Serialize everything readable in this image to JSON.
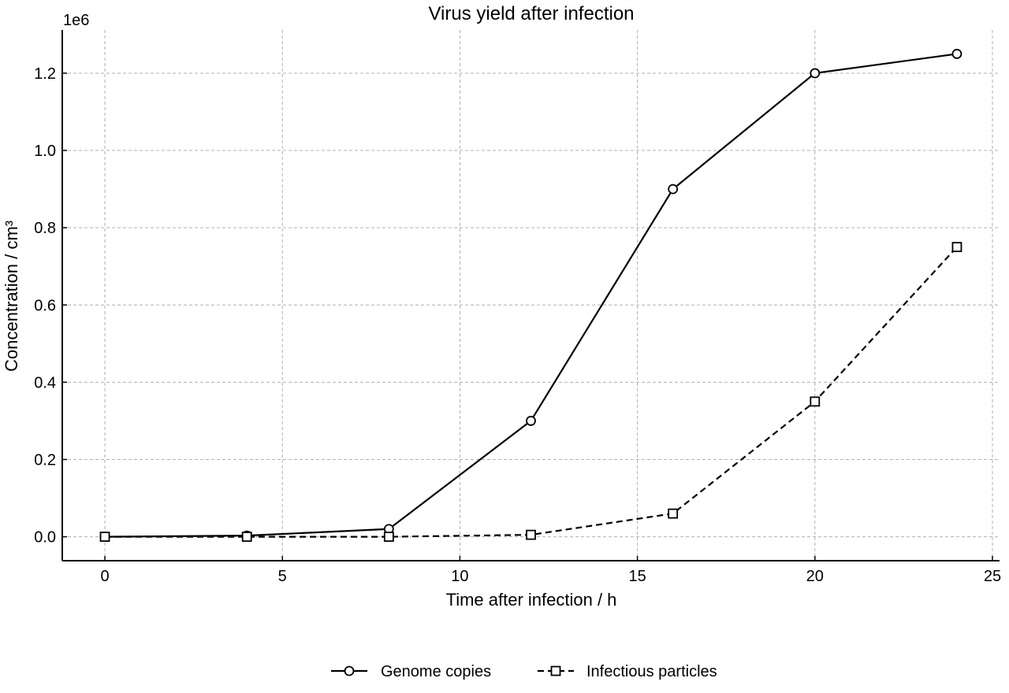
{
  "chart_data": {
    "type": "line",
    "title": "Virus yield after infection",
    "xlabel": "Time after infection / h",
    "ylabel": "Concentration / cm³",
    "y_offset_label": "1e6",
    "xlim": [
      -1.2,
      25.2
    ],
    "ylim": [
      -62000,
      1312000
    ],
    "xticks": [
      0,
      5,
      10,
      15,
      20,
      25
    ],
    "xtick_labels": [
      "0",
      "5",
      "10",
      "15",
      "20",
      "25"
    ],
    "yticks": [
      0,
      200000,
      400000,
      600000,
      800000,
      1000000,
      1200000
    ],
    "ytick_labels": [
      "0.0",
      "0.2",
      "0.4",
      "0.6",
      "0.8",
      "1.0",
      "1.2"
    ],
    "grid": true,
    "legend_position": "bottom-center",
    "x": [
      0,
      4,
      8,
      12,
      16,
      20,
      24
    ],
    "series": [
      {
        "name": "Genome copies",
        "values": [
          0,
          3000,
          20000,
          300000,
          900000,
          1200000,
          1250000
        ],
        "marker": "circle",
        "linestyle": "solid",
        "color": "#000000"
      },
      {
        "name": "Infectious particles",
        "values": [
          0,
          0,
          0,
          5000,
          60000,
          350000,
          750000
        ],
        "marker": "square",
        "linestyle": "dashed",
        "color": "#000000"
      }
    ]
  }
}
